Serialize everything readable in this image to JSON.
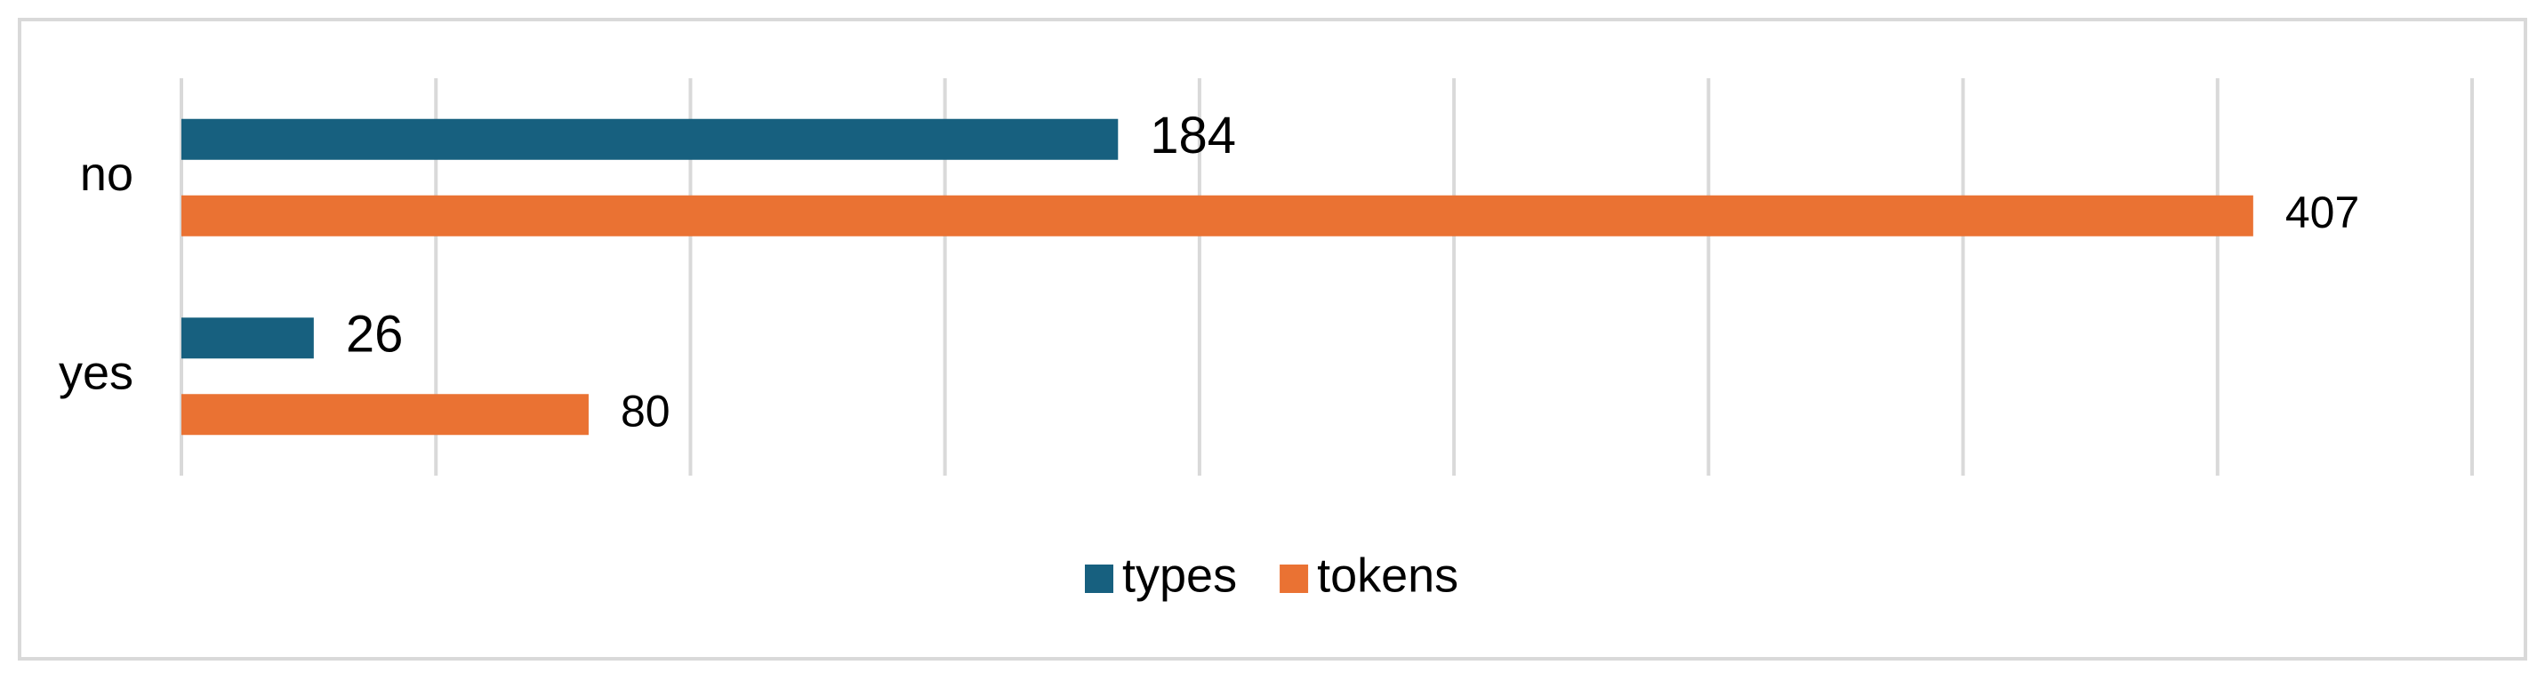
{
  "chart_data": {
    "type": "hbar",
    "categories": [
      "no",
      "yes"
    ],
    "series": [
      {
        "name": "types",
        "color": "#17607f",
        "values": [
          184,
          26
        ]
      },
      {
        "name": "tokens",
        "color": "#ea7233",
        "values": [
          407,
          80
        ]
      }
    ],
    "xlim": [
      0,
      450
    ],
    "xticks": [
      0,
      50,
      100,
      150,
      200,
      250,
      300,
      350,
      400,
      450
    ],
    "grid": true,
    "legend": "bottom"
  }
}
